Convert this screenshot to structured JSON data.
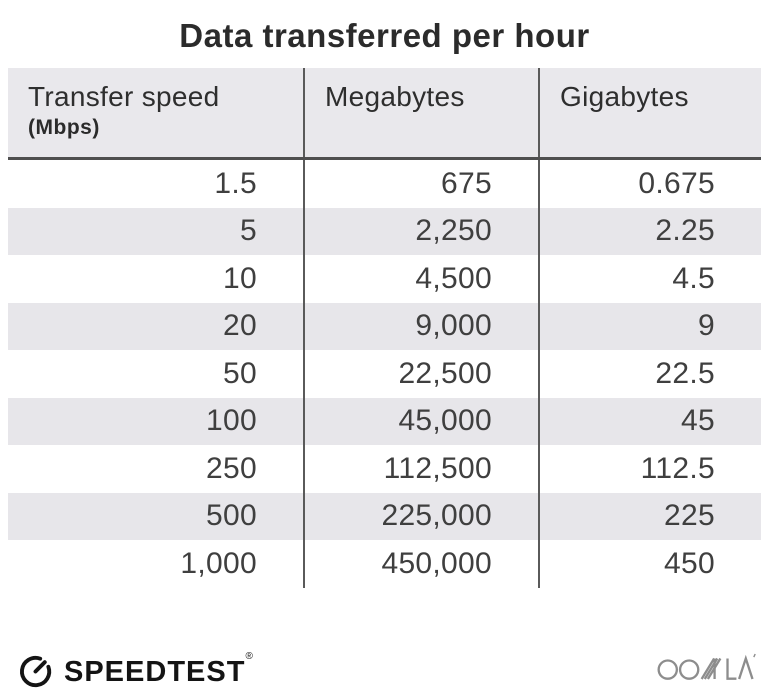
{
  "title": "Data transferred per hour",
  "table": {
    "columns": [
      {
        "label": "Transfer speed",
        "sublabel": "(Mbps)"
      },
      {
        "label": "Megabytes",
        "sublabel": ""
      },
      {
        "label": "Gigabytes",
        "sublabel": ""
      }
    ],
    "rows": [
      [
        "1.5",
        "675",
        "0.675"
      ],
      [
        "5",
        "2,250",
        "2.25"
      ],
      [
        "10",
        "4,500",
        "4.5"
      ],
      [
        "20",
        "9,000",
        "9"
      ],
      [
        "50",
        "22,500",
        "22.5"
      ],
      [
        "100",
        "45,000",
        "45"
      ],
      [
        "250",
        "112,500",
        "112.5"
      ],
      [
        "500",
        "225,000",
        "225"
      ],
      [
        "1,000",
        "450,000",
        "450"
      ]
    ]
  },
  "footer": {
    "speedtest_label": "SPEEDTEST",
    "speedtest_trademark": "®",
    "ookla_label": "OOKLA"
  },
  "colors": {
    "title_color": "#2b2b2b",
    "header_bg": "#e9e8ec",
    "header_text": "#2e2e2e",
    "stripe_bg": "#e7e6ea",
    "value_color": "#3f3f3f",
    "divider_color": "#5a5a5a",
    "rule_color": "#4f4f4f",
    "speedtest_black": "#141414",
    "ookla_gray": "#8d8d8d"
  },
  "chart_data": {
    "type": "table",
    "title": "Data transferred per hour",
    "columns": [
      "Transfer speed (Mbps)",
      "Megabytes",
      "Gigabytes"
    ],
    "rows": [
      [
        1.5,
        675,
        0.675
      ],
      [
        5,
        2250,
        2.25
      ],
      [
        10,
        4500,
        4.5
      ],
      [
        20,
        9000,
        9
      ],
      [
        50,
        22500,
        22.5
      ],
      [
        100,
        45000,
        45
      ],
      [
        250,
        112500,
        112.5
      ],
      [
        500,
        225000,
        225
      ],
      [
        1000,
        450000,
        450
      ]
    ],
    "notes": "Rows striped alternately (2nd, 4th, 6th, 8th rows shaded light gray); values right-aligned; branding: Speedtest (bottom-left), Ookla (bottom-right)."
  }
}
